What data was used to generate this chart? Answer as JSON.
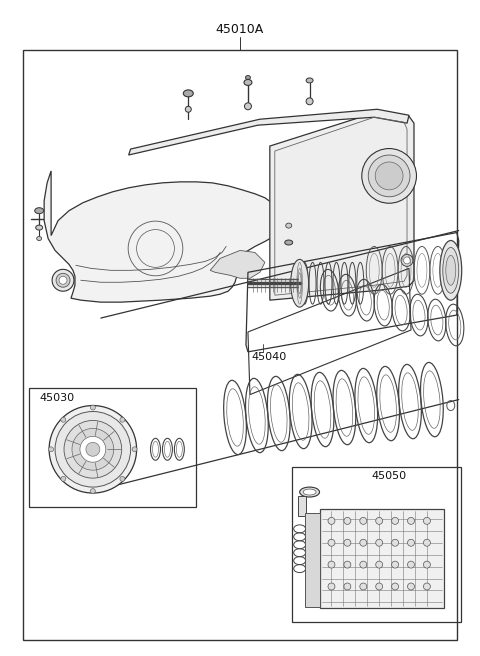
{
  "title": "45010A",
  "background_color": "#ffffff",
  "border_color": "#333333",
  "line_color": "#333333",
  "label_45010A": "45010A",
  "label_45040": "45040",
  "label_45030": "45030",
  "label_45050": "45050",
  "fig_width": 4.8,
  "fig_height": 6.56,
  "dpi": 100
}
